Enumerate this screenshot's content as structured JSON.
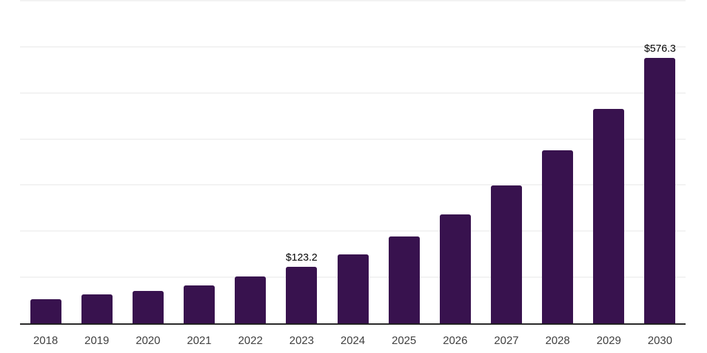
{
  "chart_data": {
    "type": "bar",
    "title": "",
    "xlabel": "",
    "ylabel": "",
    "categories": [
      "2018",
      "2019",
      "2020",
      "2021",
      "2022",
      "2023",
      "2024",
      "2025",
      "2026",
      "2027",
      "2028",
      "2029",
      "2030"
    ],
    "values": [
      52.4,
      62.1,
      71.0,
      83.0,
      101.0,
      123.2,
      149.6,
      188.5,
      236.3,
      298.4,
      375.4,
      465.9,
      576.3
    ],
    "labeled_points": [
      {
        "category": "2023",
        "label": "$123.2"
      },
      {
        "category": "2030",
        "label": "$576.3"
      }
    ],
    "ylim": [
      0,
      700
    ],
    "gridlines": [
      100,
      200,
      300,
      400,
      500,
      600,
      700
    ],
    "grid": true,
    "legend_position": "none",
    "colors": {
      "bar": "#38124e",
      "axis": "#1f1f1f",
      "grid": "#f2f2f2",
      "tick_label": "#3f3f3f",
      "data_label": "#000000",
      "background": "#ffffff"
    }
  }
}
